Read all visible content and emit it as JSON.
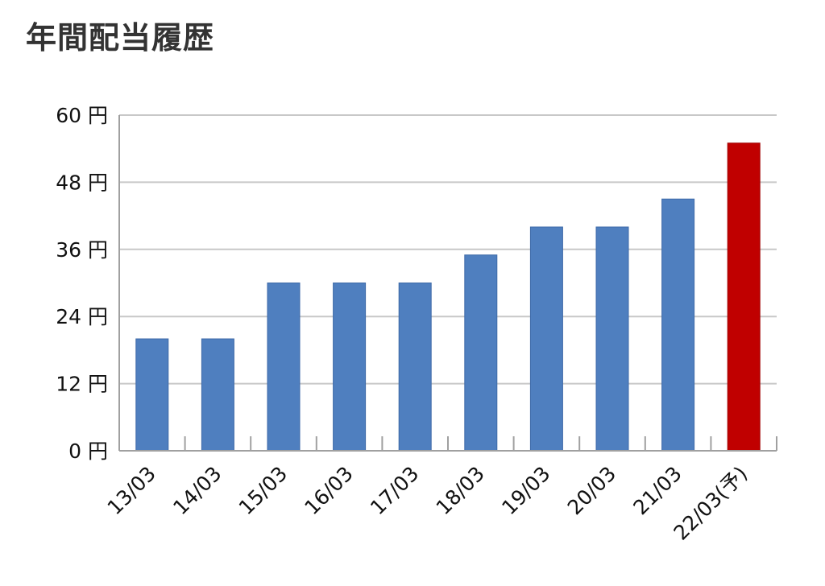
{
  "page": {
    "title": "年間配当履歴"
  },
  "chart_data": {
    "type": "bar",
    "title": "年間配当履歴",
    "categories": [
      "13/03",
      "14/03",
      "15/03",
      "16/03",
      "17/03",
      "18/03",
      "19/03",
      "20/03",
      "21/03",
      "22/03(予)"
    ],
    "values": [
      20,
      20,
      30,
      30,
      30,
      35,
      40,
      40,
      45,
      55
    ],
    "highlight_index": 9,
    "yticks": [
      0,
      12,
      24,
      36,
      48,
      60
    ],
    "ytick_labels": [
      "0 円",
      "12 円",
      "24 円",
      "36 円",
      "48 円",
      "60 円"
    ],
    "ylim": [
      0,
      60
    ],
    "grid": true,
    "xlabel": "",
    "ylabel": "",
    "colors": {
      "bar": "#4f7fbf",
      "bar_border": "#3e6aa8",
      "highlight": "#c00000",
      "highlight_border": "#a00000",
      "grid": "#c8c8c8",
      "axis": "#a0a0a0"
    }
  }
}
